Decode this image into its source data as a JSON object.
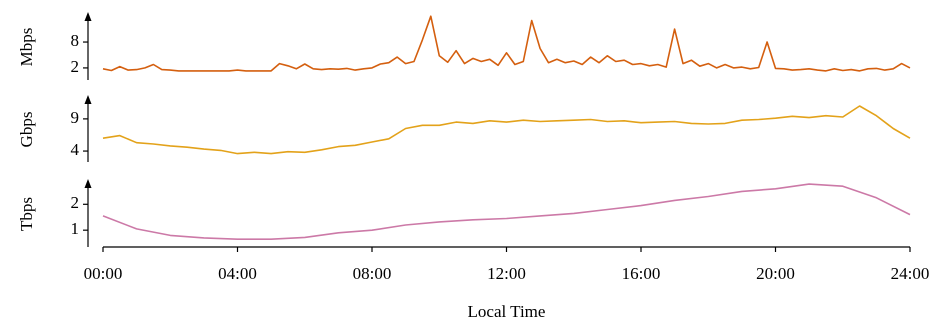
{
  "chart_data": [
    {
      "type": "line",
      "ylabel": "Mbps",
      "color": "#d45f0f",
      "ylim": [
        -0.8,
        14.5
      ],
      "yticks": [
        2,
        8
      ],
      "xlim": [
        0,
        24
      ],
      "x": [
        0,
        0.25,
        0.5,
        0.75,
        1,
        1.25,
        1.5,
        1.75,
        2,
        2.25,
        2.5,
        2.75,
        3,
        3.25,
        3.5,
        3.75,
        4,
        4.25,
        4.5,
        4.75,
        5,
        5.25,
        5.5,
        5.75,
        6,
        6.25,
        6.5,
        6.75,
        7,
        7.25,
        7.5,
        7.75,
        8,
        8.25,
        8.5,
        8.75,
        9,
        9.25,
        9.5,
        9.75,
        10,
        10.25,
        10.5,
        10.75,
        11,
        11.25,
        11.5,
        11.75,
        12,
        12.25,
        12.5,
        12.75,
        13,
        13.25,
        13.5,
        13.75,
        14,
        14.25,
        14.5,
        14.75,
        15,
        15.25,
        15.5,
        15.75,
        16,
        16.25,
        16.5,
        16.75,
        17,
        17.25,
        17.5,
        17.75,
        18,
        18.25,
        18.5,
        18.75,
        19,
        19.25,
        19.5,
        19.75,
        20,
        20.25,
        20.5,
        20.75,
        21,
        21.25,
        21.5,
        21.75,
        22,
        22.25,
        22.5,
        22.75,
        23,
        23.25,
        23.5,
        23.75,
        24
      ],
      "values": [
        1.8,
        1.4,
        2.3,
        1.5,
        1.6,
        2.0,
        2.8,
        1.6,
        1.5,
        1.3,
        1.3,
        1.3,
        1.3,
        1.3,
        1.3,
        1.3,
        1.5,
        1.3,
        1.3,
        1.3,
        1.3,
        3.0,
        2.5,
        1.8,
        2.9,
        1.8,
        1.6,
        1.8,
        1.7,
        1.9,
        1.5,
        1.8,
        2.0,
        2.9,
        3.2,
        4.5,
        3.0,
        3.5,
        8.5,
        14.0,
        4.8,
        3.3,
        6.0,
        3.0,
        4.2,
        3.5,
        4.0,
        2.6,
        5.5,
        2.8,
        3.5,
        13.0,
        6.5,
        3.2,
        4.0,
        3.2,
        3.6,
        2.8,
        4.5,
        3.2,
        4.8,
        3.5,
        3.8,
        2.8,
        3.0,
        2.5,
        2.8,
        2.2,
        11.0,
        3.0,
        3.8,
        2.4,
        3.0,
        2.0,
        2.8,
        2.0,
        2.2,
        1.8,
        2.1,
        8.0,
        1.9,
        1.8,
        1.5,
        1.6,
        1.8,
        1.5,
        1.3,
        1.8,
        1.4,
        1.6,
        1.3,
        1.8,
        1.9,
        1.5,
        1.8,
        3.0,
        2.0
      ]
    },
    {
      "type": "line",
      "ylabel": "Gbps",
      "color": "#e3a21a",
      "ylim": [
        2.3,
        12.4
      ],
      "yticks": [
        4,
        9
      ],
      "xlim": [
        0,
        24
      ],
      "x": [
        0,
        0.5,
        1,
        1.5,
        2,
        2.5,
        3,
        3.5,
        4,
        4.5,
        5,
        5.5,
        6,
        6.5,
        7,
        7.5,
        8,
        8.5,
        9,
        9.5,
        10,
        10.5,
        11,
        11.5,
        12,
        12.5,
        13,
        13.5,
        14,
        14.5,
        15,
        15.5,
        16,
        16.5,
        17,
        17.5,
        18,
        18.5,
        19,
        19.5,
        20,
        20.5,
        21,
        21.5,
        22,
        22.5,
        23,
        23.5,
        24
      ],
      "values": [
        6.0,
        6.4,
        5.3,
        5.1,
        4.8,
        4.6,
        4.3,
        4.1,
        3.6,
        3.8,
        3.6,
        3.9,
        3.8,
        4.2,
        4.7,
        4.9,
        5.4,
        5.9,
        7.5,
        8.0,
        8.0,
        8.5,
        8.3,
        8.7,
        8.5,
        8.8,
        8.6,
        8.7,
        8.8,
        8.9,
        8.6,
        8.7,
        8.4,
        8.5,
        8.6,
        8.3,
        8.2,
        8.3,
        8.8,
        8.9,
        9.1,
        9.4,
        9.2,
        9.5,
        9.3,
        11.0,
        9.5,
        7.5,
        6.0
      ]
    },
    {
      "type": "line",
      "ylabel": "Tbps",
      "color": "#cc79a7",
      "ylim": [
        0.35,
        2.9
      ],
      "yticks": [
        1,
        2
      ],
      "xlim": [
        0,
        24
      ],
      "xticks": [
        {
          "value": 0,
          "label": "00:00"
        },
        {
          "value": 4,
          "label": "04:00"
        },
        {
          "value": 8,
          "label": "08:00"
        },
        {
          "value": 12,
          "label": "12:00"
        },
        {
          "value": 16,
          "label": "16:00"
        },
        {
          "value": 20,
          "label": "20:00"
        },
        {
          "value": 24,
          "label": "24:00"
        }
      ],
      "xlabel": "Local Time",
      "x": [
        0,
        1,
        2,
        3,
        4,
        5,
        6,
        7,
        8,
        9,
        10,
        11,
        12,
        13,
        14,
        15,
        16,
        17,
        18,
        19,
        20,
        21,
        22,
        23,
        24
      ],
      "values": [
        1.55,
        1.05,
        0.8,
        0.7,
        0.65,
        0.65,
        0.72,
        0.9,
        1.0,
        1.2,
        1.32,
        1.4,
        1.45,
        1.55,
        1.65,
        1.8,
        1.95,
        2.15,
        2.3,
        2.5,
        2.6,
        2.78,
        2.7,
        2.25,
        1.6
      ]
    }
  ]
}
